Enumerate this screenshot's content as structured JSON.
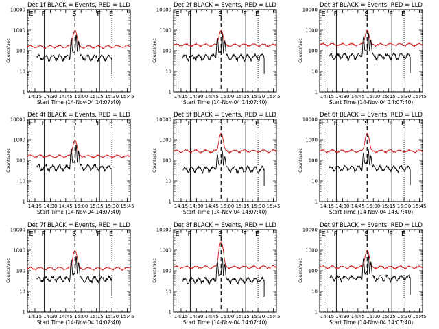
{
  "panels": [
    {
      "title": "Det 1f BLACK = Events, RED = LLD",
      "xlabel": "Start Time (14-Nov-04 14:07:40)",
      "ylabel": "Counts/sec",
      "markers": [
        {
          "t": 14.2,
          "label": "E"
        },
        {
          "t": 14.4,
          "label": "F"
        },
        {
          "t": 14.9,
          "label": "S"
        },
        {
          "t": 15.3,
          "label": "F"
        },
        {
          "t": 15.5,
          "label": "E"
        }
      ],
      "black_end": 15.5,
      "red_base": 160,
      "black_base": 48,
      "peak_mult": 12,
      "red_peak_cap": 1000
    },
    {
      "title": "Det 2f BLACK = Events, RED = LLD",
      "xlabel": "Start Time (14-Nov-04 14:07:40)",
      "ylabel": "Counts/sec",
      "markers": [
        {
          "t": 14.2,
          "label": "E"
        },
        {
          "t": 14.4,
          "label": "F"
        },
        {
          "t": 14.9,
          "label": "S"
        },
        {
          "t": 15.3,
          "label": "F"
        },
        {
          "t": 15.5,
          "label": "E"
        }
      ],
      "black_end": 15.6,
      "red_base": 190,
      "black_base": 50,
      "peak_mult": 12,
      "red_peak_cap": 1000
    },
    {
      "title": "Det 3f BLACK = Events, RED = LLD",
      "xlabel": "Start Time (14-Nov-04 14:07:40)",
      "ylabel": "Counts/sec",
      "markers": [
        {
          "t": 14.2,
          "label": "E"
        },
        {
          "t": 14.4,
          "label": "F"
        },
        {
          "t": 14.9,
          "label": "S"
        },
        {
          "t": 15.3,
          "label": "F"
        },
        {
          "t": 15.5,
          "label": "E"
        }
      ],
      "black_end": 15.6,
      "red_base": 200,
      "black_base": 55,
      "peak_mult": 12,
      "red_peak_cap": 1000
    },
    {
      "title": "Det 4f BLACK = Events, RED = LLD",
      "xlabel": "Start Time (14-Nov-04 14:07:40)",
      "ylabel": "Counts/sec",
      "markers": [
        {
          "t": 14.2,
          "label": "E"
        },
        {
          "t": 14.4,
          "label": "F"
        },
        {
          "t": 14.9,
          "label": "S"
        },
        {
          "t": 15.3,
          "label": "F"
        },
        {
          "t": 15.5,
          "label": "E"
        }
      ],
      "black_end": 15.5,
      "red_base": 160,
      "black_base": 45,
      "peak_mult": 12,
      "red_peak_cap": 1000
    },
    {
      "title": "Det 5f BLACK = Events, RED = LLD",
      "xlabel": "Start Time (14-Nov-04 14:07:40)",
      "ylabel": "Counts/sec",
      "markers": [
        {
          "t": 14.2,
          "label": "E"
        },
        {
          "t": 14.4,
          "label": "F"
        },
        {
          "t": 14.9,
          "label": "S"
        },
        {
          "t": 15.3,
          "label": "F"
        },
        {
          "t": 15.5,
          "label": "E"
        }
      ],
      "black_end": 15.6,
      "red_base": 280,
      "black_base": 38,
      "peak_mult": 7,
      "red_peak_cap": 2100
    },
    {
      "title": "Det 6f BLACK = Events, RED = LLD",
      "xlabel": "Start Time (14-Nov-04 14:07:40)",
      "ylabel": "Counts/sec",
      "markers": [
        {
          "t": 14.2,
          "label": "E"
        },
        {
          "t": 14.4,
          "label": "F"
        },
        {
          "t": 14.9,
          "label": "S"
        },
        {
          "t": 15.3,
          "label": "F"
        },
        {
          "t": 15.5,
          "label": "E"
        }
      ],
      "black_end": 15.6,
      "red_base": 280,
      "black_base": 42,
      "peak_mult": 7,
      "red_peak_cap": 2100
    },
    {
      "title": "Det 7f BLACK = Events, RED = LLD",
      "xlabel": "Start Time (14-Nov-04 14:07:40)",
      "ylabel": "Counts/sec",
      "markers": [
        {
          "t": 14.2,
          "label": "E"
        },
        {
          "t": 14.4,
          "label": "F"
        },
        {
          "t": 14.9,
          "label": "S"
        },
        {
          "t": 15.3,
          "label": "F"
        },
        {
          "t": 15.5,
          "label": "E"
        }
      ],
      "black_end": 15.5,
      "red_base": 130,
      "black_base": 40,
      "peak_mult": 12,
      "red_peak_cap": 1000
    },
    {
      "title": "Det 8f BLACK = Events, RED = LLD",
      "xlabel": "Start Time (14-Nov-04 14:07:40)",
      "ylabel": "Counts/sec",
      "markers": [
        {
          "t": 14.2,
          "label": "E"
        },
        {
          "t": 14.4,
          "label": "F"
        },
        {
          "t": 14.9,
          "label": "S"
        },
        {
          "t": 15.3,
          "label": "F"
        },
        {
          "t": 15.5,
          "label": "E"
        }
      ],
      "black_end": 15.6,
      "red_base": 150,
      "black_base": 35,
      "peak_mult": 12,
      "red_peak_cap": 2500
    },
    {
      "title": "Det 9f BLACK = Events, RED = LLD",
      "xlabel": "Start Time (14-Nov-04 14:07:40)",
      "ylabel": "Counts/sec",
      "markers": [
        {
          "t": 14.2,
          "label": "E"
        },
        {
          "t": 14.4,
          "label": "F"
        },
        {
          "t": 14.9,
          "label": "S"
        },
        {
          "t": 15.3,
          "label": "F"
        },
        {
          "t": 15.5,
          "label": "E"
        }
      ],
      "black_end": 15.6,
      "red_base": 150,
      "black_base": 45,
      "peak_mult": 12,
      "red_peak_cap": 1000
    }
  ],
  "chart_data": {
    "type": "line",
    "layout": "3x3 grid",
    "x_tick_labels": [
      "14:15",
      "14:30",
      "14:45",
      "15:00",
      "15:15",
      "15:30",
      "15:45"
    ],
    "x_ticks_hours": [
      14.25,
      14.5,
      14.75,
      15.0,
      15.25,
      15.5,
      15.75
    ],
    "xlim_hours": [
      14.128,
      15.8
    ],
    "y_scale": "log",
    "ylim": [
      1,
      10000
    ],
    "y_tick_labels": [
      "1",
      "10",
      "100",
      "1000",
      "10000"
    ],
    "series_colors": {
      "events": "#000000",
      "lld": "#d01010"
    },
    "peak_time_hours": 14.9,
    "events_start_hours": 14.28,
    "grid": false
  }
}
